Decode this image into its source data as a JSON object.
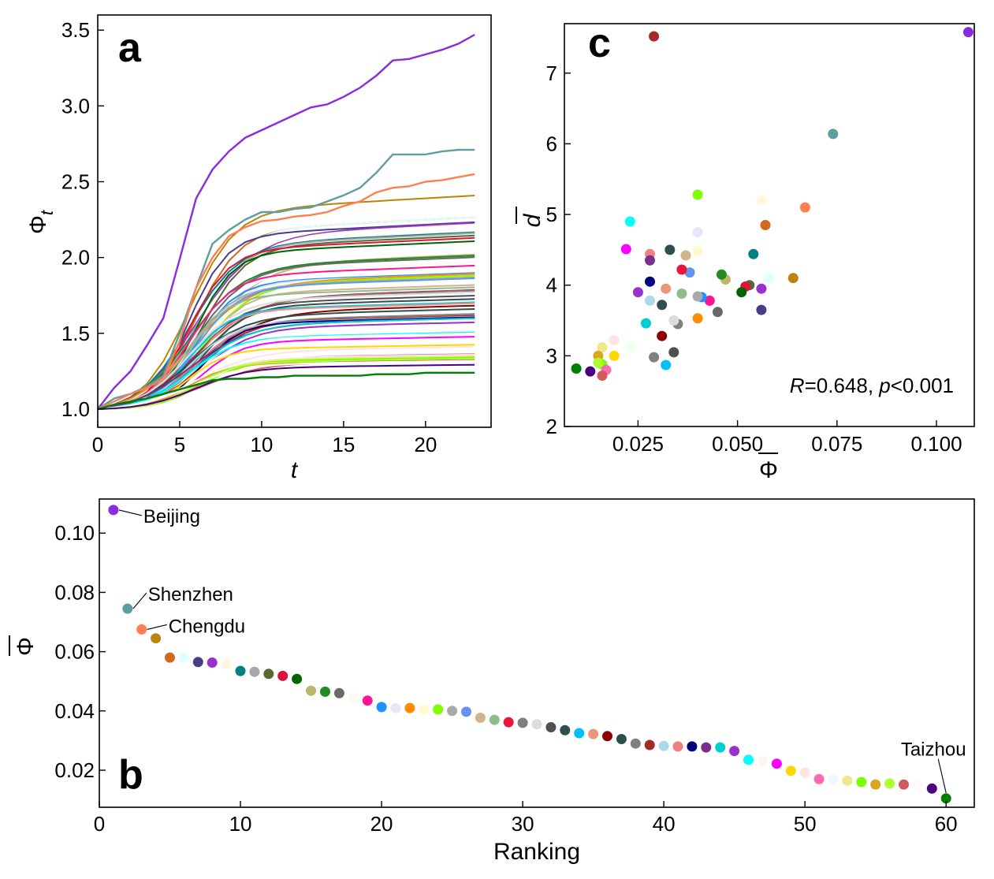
{
  "chart_data": [
    {
      "panel": "a",
      "type": "line",
      "panel_label": "a",
      "xlabel": "t",
      "ylabel": "Φ",
      "ylabel_sub": "t",
      "xlim": [
        0,
        24
      ],
      "ylim": [
        0.88,
        3.6
      ],
      "xticks": [
        0,
        5,
        10,
        15,
        20
      ],
      "yticks": [
        1.0,
        1.5,
        2.0,
        2.5,
        3.0,
        3.5
      ],
      "ytick_labels": [
        "1.0",
        "1.5",
        "2.0",
        "2.5",
        "3.0",
        "3.5"
      ],
      "note": "60 city curves; one curve per city shown in panel b, same colours",
      "highlight_series": [
        {
          "name": "Beijing",
          "color": "#8a2be2",
          "values": [
            1.0,
            1.14,
            1.25,
            1.42,
            1.6,
            1.99,
            2.39,
            2.58,
            2.7,
            2.79,
            2.84,
            2.89,
            2.94,
            2.99,
            3.01,
            3.06,
            3.12,
            3.2,
            3.3,
            3.31,
            3.34,
            3.37,
            3.41,
            3.47
          ]
        },
        {
          "name": "Shenzhen",
          "color": "#5f9ea0",
          "values": [
            1.0,
            1.07,
            1.1,
            1.15,
            1.22,
            1.5,
            1.8,
            2.09,
            2.18,
            2.25,
            2.3,
            2.3,
            2.32,
            2.33,
            2.37,
            2.41,
            2.46,
            2.56,
            2.68,
            2.68,
            2.68,
            2.7,
            2.71,
            2.71
          ]
        },
        {
          "name": "Chengdu",
          "color": "#ff7f50",
          "values": [
            1.0,
            1.05,
            1.1,
            1.14,
            1.2,
            1.45,
            1.8,
            2.0,
            2.14,
            2.2,
            2.24,
            2.25,
            2.27,
            2.28,
            2.3,
            2.34,
            2.37,
            2.43,
            2.46,
            2.47,
            2.5,
            2.51,
            2.53,
            2.55
          ]
        },
        {
          "name": "Taizhou",
          "color": "#008000",
          "values": [
            1.0,
            1.03,
            1.05,
            1.07,
            1.1,
            1.13,
            1.16,
            1.19,
            1.2,
            1.2,
            1.21,
            1.21,
            1.22,
            1.22,
            1.22,
            1.22,
            1.22,
            1.23,
            1.23,
            1.23,
            1.24,
            1.24,
            1.24,
            1.24
          ]
        }
      ]
    },
    {
      "panel": "c",
      "type": "scatter",
      "panel_label": "c",
      "xlabel": "Φ",
      "ylabel": "d",
      "xlim": [
        0.0065,
        0.1095
      ],
      "ylim": [
        2.0,
        7.7
      ],
      "xticks": [
        0.025,
        0.05,
        0.075,
        0.1
      ],
      "xtick_labels": [
        "0.025",
        "0.050",
        "0.075",
        "0.100"
      ],
      "yticks": [
        2,
        3,
        4,
        5,
        6,
        7
      ],
      "annotation_R": "R",
      "annotation_R_value": "=0.648, ",
      "annotation_p": "p",
      "annotation_p_value": "<0.001",
      "points": [
        {
          "x": 0.108,
          "y": 7.58,
          "color": "#8a2be2"
        },
        {
          "x": 0.074,
          "y": 6.14,
          "color": "#5f9ea0"
        },
        {
          "x": 0.067,
          "y": 5.1,
          "color": "#ff7f50"
        },
        {
          "x": 0.064,
          "y": 4.1,
          "color": "#b8860b"
        },
        {
          "x": 0.057,
          "y": 4.85,
          "color": "#d2691e"
        },
        {
          "x": 0.058,
          "y": 4.1,
          "color": "#e0ffff"
        },
        {
          "x": 0.056,
          "y": 5.2,
          "color": "#fff8dc"
        },
        {
          "x": 0.056,
          "y": 3.95,
          "color": "#9932cc"
        },
        {
          "x": 0.056,
          "y": 3.65,
          "color": "#483d8b"
        },
        {
          "x": 0.054,
          "y": 4.44,
          "color": "#008080"
        },
        {
          "x": 0.053,
          "y": 4.0,
          "color": "#556b2f"
        },
        {
          "x": 0.052,
          "y": 3.98,
          "color": "#dc143c"
        },
        {
          "x": 0.051,
          "y": 3.9,
          "color": "#006400"
        },
        {
          "x": 0.047,
          "y": 4.08,
          "color": "#bdb76b"
        },
        {
          "x": 0.046,
          "y": 4.15,
          "color": "#228b22"
        },
        {
          "x": 0.045,
          "y": 3.62,
          "color": "#696969"
        },
        {
          "x": 0.043,
          "y": 3.78,
          "color": "#ff1493"
        },
        {
          "x": 0.04,
          "y": 5.28,
          "color": "#7fff00"
        },
        {
          "x": 0.04,
          "y": 4.75,
          "color": "#e6e6fa"
        },
        {
          "x": 0.04,
          "y": 4.48,
          "color": "#fffacd"
        },
        {
          "x": 0.041,
          "y": 3.83,
          "color": "#1e90ff"
        },
        {
          "x": 0.04,
          "y": 3.84,
          "color": "#a9a9a9"
        },
        {
          "x": 0.04,
          "y": 3.53,
          "color": "#ff8c00"
        },
        {
          "x": 0.038,
          "y": 4.18,
          "color": "#6495ed"
        },
        {
          "x": 0.037,
          "y": 4.42,
          "color": "#d2b48c"
        },
        {
          "x": 0.036,
          "y": 4.22,
          "color": "#e9163c"
        },
        {
          "x": 0.036,
          "y": 3.88,
          "color": "#8fbc8f"
        },
        {
          "x": 0.035,
          "y": 3.45,
          "color": "#808080"
        },
        {
          "x": 0.034,
          "y": 3.5,
          "color": "#dcdcdc"
        },
        {
          "x": 0.033,
          "y": 4.5,
          "color": "#2f4f4f"
        },
        {
          "x": 0.034,
          "y": 3.05,
          "color": "#505050"
        },
        {
          "x": 0.032,
          "y": 3.95,
          "color": "#e9967a"
        },
        {
          "x": 0.031,
          "y": 3.72,
          "color": "#2f4f4f"
        },
        {
          "x": 0.031,
          "y": 3.28,
          "color": "#8b0000"
        },
        {
          "x": 0.032,
          "y": 2.87,
          "color": "#00bfff"
        },
        {
          "x": 0.029,
          "y": 7.52,
          "color": "#a52a2a"
        },
        {
          "x": 0.029,
          "y": 2.98,
          "color": "#808080"
        },
        {
          "x": 0.028,
          "y": 4.44,
          "color": "#f08080"
        },
        {
          "x": 0.028,
          "y": 4.35,
          "color": "#7b2e8e"
        },
        {
          "x": 0.028,
          "y": 4.05,
          "color": "#000080"
        },
        {
          "x": 0.028,
          "y": 3.78,
          "color": "#add8e6"
        },
        {
          "x": 0.027,
          "y": 3.46,
          "color": "#00ced1"
        },
        {
          "x": 0.025,
          "y": 3.9,
          "color": "#9932cc"
        },
        {
          "x": 0.023,
          "y": 4.9,
          "color": "#00ffff"
        },
        {
          "x": 0.022,
          "y": 4.51,
          "color": "#ff00ff"
        },
        {
          "x": 0.023,
          "y": 3.12,
          "color": "#f0fff0"
        },
        {
          "x": 0.019,
          "y": 3.22,
          "color": "#ffe4e1"
        },
        {
          "x": 0.019,
          "y": 3.0,
          "color": "#ffd700"
        },
        {
          "x": 0.016,
          "y": 3.12,
          "color": "#f0e68c"
        },
        {
          "x": 0.015,
          "y": 3.0,
          "color": "#daa520"
        },
        {
          "x": 0.016,
          "y": 2.88,
          "color": "#7cfc00"
        },
        {
          "x": 0.017,
          "y": 2.8,
          "color": "#ff69b4"
        },
        {
          "x": 0.015,
          "y": 2.9,
          "color": "#adff2f"
        },
        {
          "x": 0.016,
          "y": 2.72,
          "color": "#cd5c5c"
        },
        {
          "x": 0.013,
          "y": 2.78,
          "color": "#4b0082"
        },
        {
          "x": 0.0095,
          "y": 2.82,
          "color": "#008000"
        }
      ]
    },
    {
      "panel": "b",
      "type": "scatter",
      "panel_label": "b",
      "xlabel": "Ranking",
      "ylabel": "Φ",
      "xlim": [
        0,
        62
      ],
      "ylim": [
        0.0075,
        0.1115
      ],
      "xticks": [
        0,
        10,
        20,
        30,
        40,
        50,
        60
      ],
      "yticks": [
        0.02,
        0.04,
        0.06,
        0.08,
        0.1
      ],
      "ytick_labels": [
        "0.02",
        "0.04",
        "0.06",
        "0.08",
        "0.10"
      ],
      "values": [
        0.1078,
        0.0745,
        0.0675,
        0.0645,
        0.058,
        0.058,
        0.0565,
        0.0563,
        0.0558,
        0.0535,
        0.0532,
        0.0525,
        0.0518,
        0.0508,
        0.0468,
        0.0465,
        0.046,
        0.0445,
        0.0435,
        0.0413,
        0.041,
        0.041,
        0.0405,
        0.0405,
        0.04,
        0.0397,
        0.0377,
        0.037,
        0.0362,
        0.036,
        0.0355,
        0.0345,
        0.0335,
        0.0325,
        0.0322,
        0.0315,
        0.0305,
        0.029,
        0.0285,
        0.0282,
        0.028,
        0.028,
        0.0277,
        0.0277,
        0.0265,
        0.0235,
        0.0232,
        0.0222,
        0.0198,
        0.0192,
        0.017,
        0.0168,
        0.0165,
        0.016,
        0.0152,
        0.0155,
        0.0152,
        0.015,
        0.0138,
        0.0105
      ],
      "colors": [
        "#8a2be2",
        "#5f9ea0",
        "#ff7f50",
        "#b8860b",
        "#d2691e",
        "#e0ffff",
        "#483d8b",
        "#9932cc",
        "#fff8dc",
        "#008080",
        "#a9a9a9",
        "#556b2f",
        "#dc143c",
        "#006400",
        "#bdb76b",
        "#228b22",
        "#696969",
        "#fffaf0",
        "#ff1493",
        "#1e90ff",
        "#e6e6fa",
        "#ff8c00",
        "#fffacd",
        "#7fff00",
        "#a9a9a9",
        "#6495ed",
        "#d2b48c",
        "#8fbc8f",
        "#e9163c",
        "#808080",
        "#dcdcdc",
        "#505050",
        "#2f4f4f",
        "#00bfff",
        "#e9967a",
        "#8b0000",
        "#2f4f4f",
        "#808080",
        "#a52a2a",
        "#add8e6",
        "#f08080",
        "#000080",
        "#7b2e8e",
        "#00ced1",
        "#9932cc",
        "#00ffff",
        "#fff5ee",
        "#ff00ff",
        "#ffd700",
        "#ffe4e1",
        "#ff69b4",
        "#f0f8ff",
        "#f0e68c",
        "#7cfc00",
        "#daa520",
        "#adff2f",
        "#cd5c5c",
        "#fffafa",
        "#4b0082",
        "#008000"
      ],
      "annotations": [
        {
          "label": "Beijing",
          "rank": 1
        },
        {
          "label": "Shenzhen",
          "rank": 2
        },
        {
          "label": "Chengdu",
          "rank": 3
        },
        {
          "label": "Taizhou",
          "rank": 60
        }
      ]
    }
  ]
}
